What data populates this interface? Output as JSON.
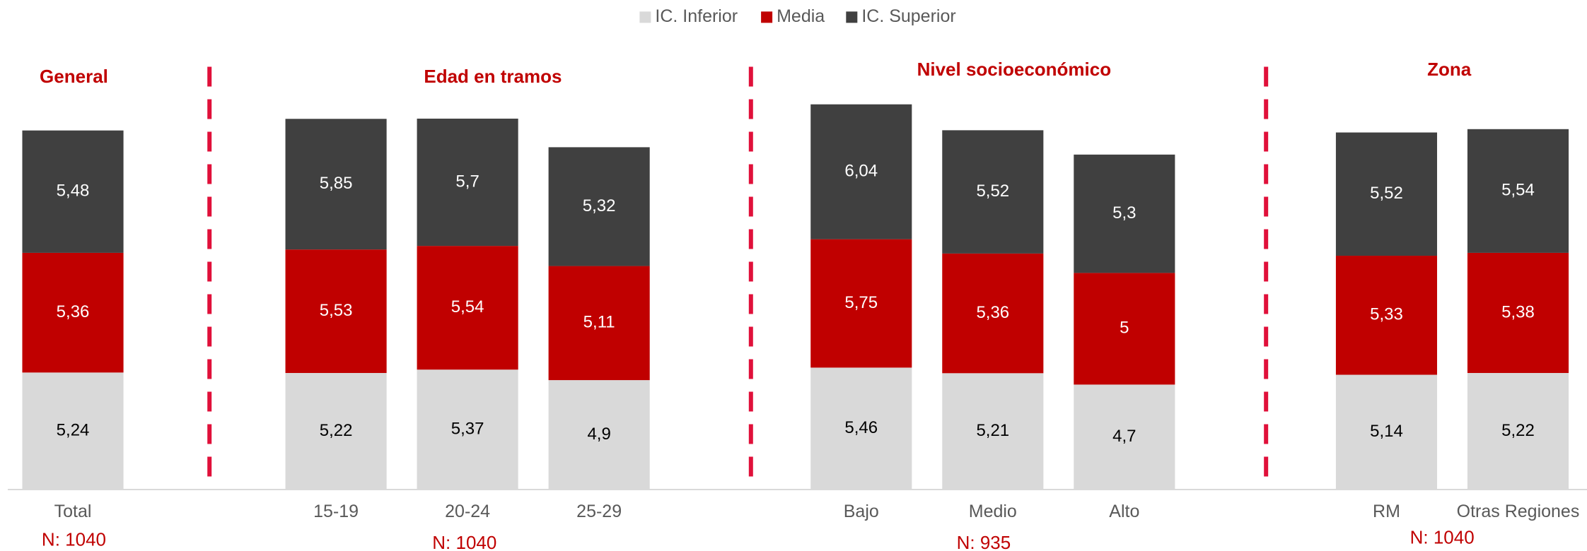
{
  "chart_data": {
    "type": "stacked-bar",
    "groups": [
      {
        "title": "General",
        "note": "N: 1040",
        "categories": [
          "Total"
        ]
      },
      {
        "title": "Edad en tramos",
        "note": "N: 1040",
        "categories": [
          "15-19",
          "20-24",
          "25-29"
        ]
      },
      {
        "title": "Nivel socioeconómico",
        "note": "N: 935",
        "categories": [
          "Bajo",
          "Medio",
          "Alto"
        ]
      },
      {
        "title": "Zona",
        "note": "N: 1040",
        "categories": [
          "RM",
          "Otras Regiones"
        ]
      }
    ],
    "series": [
      {
        "name": "IC. Inferior",
        "color": "#d9d9d9",
        "values": [
          5.24,
          5.22,
          5.37,
          4.9,
          5.46,
          5.21,
          4.7,
          5.14,
          5.22
        ],
        "value_labels": [
          "5,24",
          "5,22",
          "5,37",
          "4,9",
          "5,46",
          "5,21",
          "4,7",
          "5,14",
          "5,22"
        ]
      },
      {
        "name": "Media",
        "color": "#c00000",
        "values": [
          5.36,
          5.53,
          5.54,
          5.11,
          5.75,
          5.36,
          5,
          5.33,
          5.38
        ],
        "value_labels": [
          "5,36",
          "5,53",
          "5,54",
          "5,11",
          "5,75",
          "5,36",
          "5",
          "5,33",
          "5,38"
        ]
      },
      {
        "name": "IC. Superior",
        "color": "#404040",
        "values": [
          5.48,
          5.85,
          5.7,
          5.32,
          6.04,
          5.52,
          5.3,
          5.52,
          5.54
        ],
        "value_labels": [
          "5,48",
          "5,85",
          "5,7",
          "5,32",
          "6,04",
          "5,52",
          "5,3",
          "5,52",
          "5,54"
        ]
      }
    ],
    "ylim": [
      0,
      18
    ]
  }
}
